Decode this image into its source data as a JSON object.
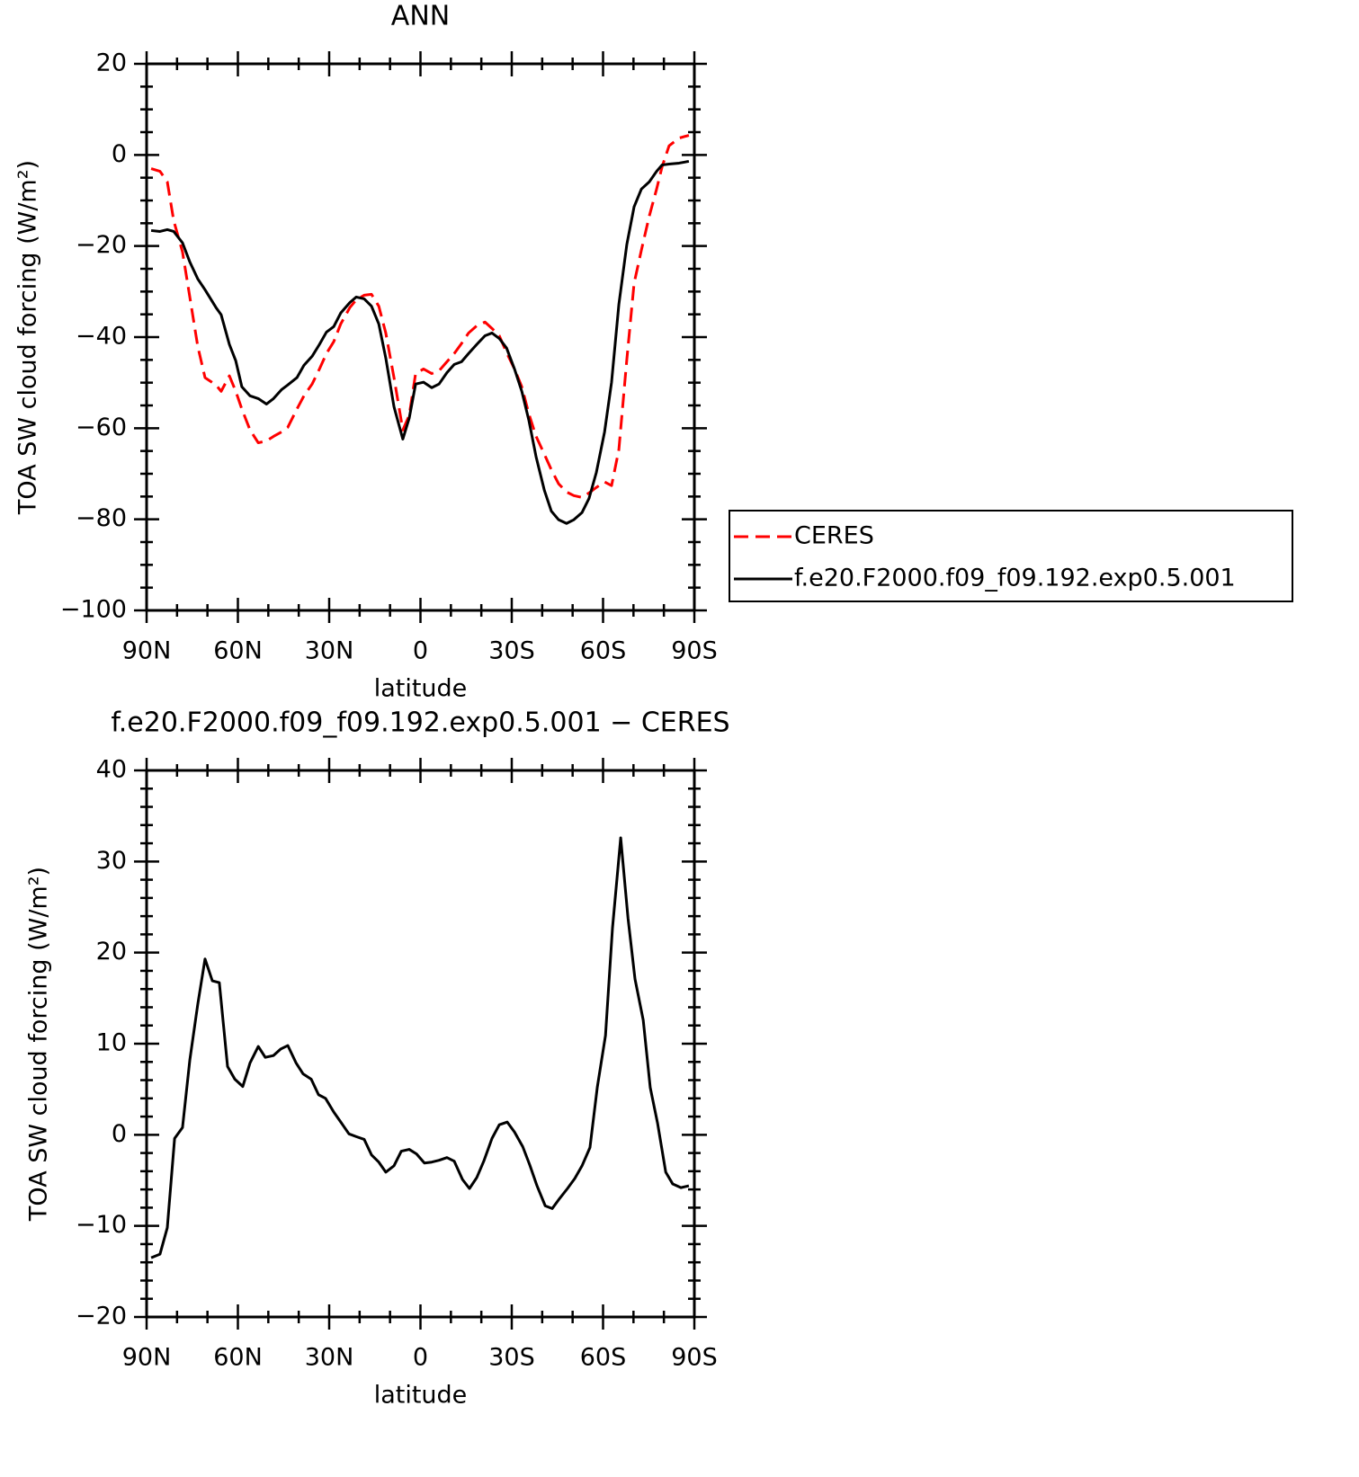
{
  "chart_data": [
    {
      "type": "line",
      "title": "ANN",
      "x_label": "latitude",
      "y_label": "TOA SW cloud forcing (W/m²)",
      "xlim": [
        90,
        -90
      ],
      "xticks": [
        {
          "value": 90,
          "label": "90N"
        },
        {
          "value": 60,
          "label": "60N"
        },
        {
          "value": 30,
          "label": "30N"
        },
        0,
        {
          "value": -30,
          "label": "30S"
        },
        {
          "value": -60,
          "label": "60S"
        },
        {
          "value": -90,
          "label": "90S"
        }
      ],
      "ylim": [
        -100,
        20
      ],
      "yticks": [
        {
          "value": -100,
          "label": "−100"
        },
        {
          "value": -80,
          "label": "−80"
        },
        {
          "value": -60,
          "label": "−60"
        },
        {
          "value": -40,
          "label": "−40"
        },
        {
          "value": -20,
          "label": "−20"
        },
        0,
        20
      ],
      "legend": "right",
      "series": [
        {
          "name": "CERES",
          "color": "#ff0000",
          "dash": "dashed",
          "x": [
            88.5,
            85.6,
            83.2,
            81.1,
            78.2,
            75.8,
            73.2,
            70.8,
            67.2,
            65.5,
            62.8,
            60.7,
            58.7,
            56.0,
            53.3,
            50.6,
            48.3,
            45.6,
            43.6,
            40.6,
            38.3,
            35.6,
            33.2,
            30.9,
            28.5,
            26.2,
            23.2,
            21.1,
            18.5,
            16.1,
            13.7,
            11.4,
            8.7,
            5.8,
            3.7,
            1.6,
            -1.0,
            -3.7,
            -6.1,
            -8.7,
            -11.1,
            -13.5,
            -15.8,
            -18.5,
            -21.2,
            -23.5,
            -25.9,
            -28.3,
            -30.9,
            -33.3,
            -35.6,
            -38.0,
            -40.7,
            -43.0,
            -45.4,
            -48.0,
            -50.4,
            -53.1,
            -55.4,
            -57.8,
            -60.5,
            -62.8,
            -65.2,
            -67.8,
            -70.2,
            -72.6,
            -75.2,
            -77.6,
            -79.4,
            -81.7,
            -85.0,
            -88.2
          ],
          "values": [
            -3.0,
            -3.6,
            -5.9,
            -14.4,
            -21.3,
            -31.2,
            -42.0,
            -48.9,
            -50.5,
            -51.9,
            -48.5,
            -51.9,
            -55.8,
            -60.4,
            -63.2,
            -62.8,
            -61.8,
            -60.8,
            -59.8,
            -55.8,
            -52.9,
            -50.3,
            -47.0,
            -43.6,
            -41.0,
            -37.1,
            -33.5,
            -31.8,
            -30.8,
            -30.6,
            -33.2,
            -39.1,
            -48.9,
            -60.4,
            -57.2,
            -48.0,
            -47.0,
            -48.0,
            -47.4,
            -45.4,
            -43.6,
            -41.4,
            -39.1,
            -37.5,
            -36.7,
            -38.1,
            -39.7,
            -43.4,
            -47.0,
            -50.9,
            -56.8,
            -61.8,
            -65.7,
            -69.1,
            -72.2,
            -74.0,
            -74.8,
            -75.2,
            -74.2,
            -73.0,
            -71.8,
            -72.6,
            -64.7,
            -45.0,
            -28.2,
            -20.9,
            -13.4,
            -7.5,
            -2.6,
            2.0,
            3.7,
            4.3
          ]
        },
        {
          "name": "f.e20.F2000.f09_f09.192.exp0.5.001",
          "color": "#000000",
          "dash": "solid",
          "x": [
            88.5,
            85.6,
            83.2,
            81.1,
            78.2,
            75.8,
            73.2,
            70.8,
            67.2,
            65.5,
            62.8,
            60.7,
            58.7,
            56.0,
            53.3,
            50.6,
            48.3,
            45.6,
            43.6,
            40.6,
            38.3,
            35.6,
            33.2,
            30.9,
            28.5,
            26.2,
            23.2,
            21.1,
            18.5,
            16.1,
            13.7,
            11.4,
            8.7,
            5.8,
            3.7,
            1.6,
            -1.0,
            -3.7,
            -6.1,
            -8.7,
            -11.1,
            -13.5,
            -15.8,
            -18.5,
            -21.2,
            -23.5,
            -25.9,
            -28.3,
            -30.9,
            -33.3,
            -35.6,
            -38.0,
            -40.7,
            -43.0,
            -45.4,
            -48.0,
            -50.4,
            -53.1,
            -55.4,
            -57.8,
            -60.5,
            -62.8,
            -65.2,
            -67.8,
            -70.2,
            -72.6,
            -75.2,
            -77.6,
            -79.4,
            -81.7,
            -85.0,
            -88.2
          ],
          "values": [
            -16.6,
            -16.8,
            -16.4,
            -16.8,
            -19.3,
            -23.5,
            -27.2,
            -29.6,
            -33.5,
            -35.1,
            -41.6,
            -45.2,
            -50.9,
            -52.9,
            -53.5,
            -54.7,
            -53.5,
            -51.5,
            -50.5,
            -48.9,
            -46.2,
            -44.2,
            -41.6,
            -38.9,
            -37.7,
            -34.7,
            -32.4,
            -31.2,
            -31.6,
            -33.2,
            -37.1,
            -44.6,
            -55.3,
            -62.4,
            -57.8,
            -50.3,
            -49.9,
            -51.1,
            -50.3,
            -47.8,
            -46.0,
            -45.4,
            -43.6,
            -41.6,
            -39.7,
            -39.1,
            -40.3,
            -42.4,
            -47.0,
            -51.9,
            -58.2,
            -66.3,
            -73.6,
            -78.2,
            -80.1,
            -80.9,
            -80.1,
            -78.5,
            -75.4,
            -69.7,
            -60.8,
            -49.9,
            -32.8,
            -19.7,
            -11.4,
            -7.5,
            -5.9,
            -3.6,
            -2.2,
            -2.0,
            -1.8,
            -1.4
          ]
        }
      ]
    },
    {
      "type": "line",
      "title": "f.e20.F2000.f09_f09.192.exp0.5.001 − CERES",
      "x_label": "latitude",
      "y_label": "TOA SW cloud forcing (W/m²)",
      "xlim": [
        90,
        -90
      ],
      "xticks": [
        {
          "value": 90,
          "label": "90N"
        },
        {
          "value": 60,
          "label": "60N"
        },
        {
          "value": 30,
          "label": "30N"
        },
        0,
        {
          "value": -30,
          "label": "30S"
        },
        {
          "value": -60,
          "label": "60S"
        },
        {
          "value": -90,
          "label": "90S"
        }
      ],
      "ylim": [
        -20,
        40
      ],
      "yticks": [
        {
          "value": -20,
          "label": "−20"
        },
        {
          "value": -10,
          "label": "−10"
        },
        0,
        10,
        20,
        30,
        40
      ],
      "series": [
        {
          "color": "#000000",
          "dash": "solid",
          "x": [
            88.5,
            85.6,
            83.2,
            80.8,
            78.2,
            75.8,
            73.2,
            70.8,
            68.4,
            66.1,
            63.4,
            61.0,
            58.4,
            56.0,
            53.3,
            51.0,
            48.3,
            46.0,
            43.6,
            40.9,
            38.6,
            35.9,
            33.5,
            31.2,
            28.5,
            26.2,
            23.5,
            21.1,
            18.5,
            16.1,
            13.7,
            11.4,
            8.7,
            6.3,
            3.7,
            1.3,
            -1.3,
            -3.7,
            -6.1,
            -8.7,
            -11.1,
            -13.8,
            -16.1,
            -18.5,
            -20.8,
            -23.5,
            -25.9,
            -28.5,
            -30.9,
            -33.6,
            -35.9,
            -38.3,
            -41.0,
            -43.3,
            -45.7,
            -48.3,
            -50.7,
            -53.1,
            -55.7,
            -58.1,
            -60.8,
            -63.1,
            -65.8,
            -68.2,
            -70.5,
            -73.2,
            -75.5,
            -77.9,
            -80.6,
            -82.9,
            -85.6,
            -88.2
          ],
          "values": [
            -13.5,
            -13.1,
            -10.2,
            -0.4,
            0.8,
            8.2,
            14.3,
            19.3,
            16.9,
            16.7,
            7.5,
            6.1,
            5.3,
            7.9,
            9.7,
            8.5,
            8.7,
            9.4,
            9.8,
            7.9,
            6.7,
            6.1,
            4.4,
            4.0,
            2.5,
            1.4,
            0.1,
            -0.2,
            -0.5,
            -2.2,
            -3.0,
            -4.1,
            -3.4,
            -1.8,
            -1.6,
            -2.1,
            -3.1,
            -3.0,
            -2.8,
            -2.5,
            -2.9,
            -4.9,
            -5.9,
            -4.7,
            -2.9,
            -0.4,
            1.1,
            1.4,
            0.3,
            -1.3,
            -3.3,
            -5.6,
            -7.8,
            -8.1,
            -7.0,
            -5.9,
            -4.8,
            -3.4,
            -1.4,
            5.2,
            10.9,
            22.7,
            32.6,
            23.8,
            17.1,
            12.6,
            5.2,
            1.3,
            -4.1,
            -5.4,
            -5.8,
            -5.6
          ]
        }
      ]
    }
  ]
}
